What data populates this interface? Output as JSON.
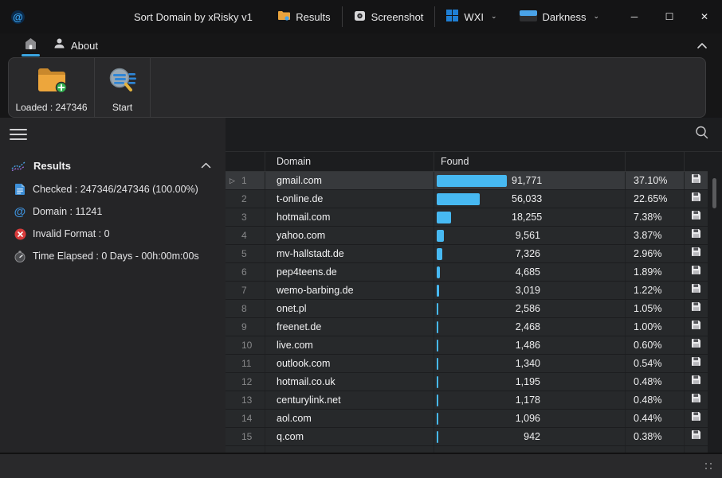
{
  "window": {
    "title": "Sort Domain by xRisky v1",
    "controls": [
      {
        "name": "minimize",
        "glyph": "─"
      },
      {
        "name": "maximize",
        "glyph": "☐"
      },
      {
        "name": "close",
        "glyph": "✕"
      }
    ]
  },
  "titlebar": {
    "results_label": "Results",
    "screenshot_label": "Screenshot",
    "wxi_label": "WXI",
    "darkness_label": "Darkness"
  },
  "tabs": {
    "about_label": "About"
  },
  "ribbon": {
    "loaded_label": "Loaded : 247346",
    "start_label": "Start"
  },
  "sidebar": {
    "section_title": "Results",
    "stats": [
      {
        "icon": "checked-document-icon",
        "label": "Checked : 247346/247346 (100.00%)"
      },
      {
        "icon": "at-icon",
        "label": "Domain : 11241"
      },
      {
        "icon": "invalid-format-icon",
        "label": "Invalid Format : 0"
      },
      {
        "icon": "time-elapsed-icon",
        "label": "Time Elapsed : 0 Days - 00h:00m:00s"
      }
    ]
  },
  "table": {
    "headers": {
      "domain": "Domain",
      "found": "Found"
    },
    "rows": [
      {
        "num": "1",
        "domain": "gmail.com",
        "found": "91,771",
        "percent": "37.10%",
        "selected": true
      },
      {
        "num": "2",
        "domain": "t-online.de",
        "found": "56,033",
        "percent": "22.65%",
        "selected": false
      },
      {
        "num": "3",
        "domain": "hotmail.com",
        "found": "18,255",
        "percent": "7.38%",
        "selected": false
      },
      {
        "num": "4",
        "domain": "yahoo.com",
        "found": "9,561",
        "percent": "3.87%",
        "selected": false
      },
      {
        "num": "5",
        "domain": "mv-hallstadt.de",
        "found": "7,326",
        "percent": "2.96%",
        "selected": false
      },
      {
        "num": "6",
        "domain": "pep4teens.de",
        "found": "4,685",
        "percent": "1.89%",
        "selected": false
      },
      {
        "num": "7",
        "domain": "wemo-barbing.de",
        "found": "3,019",
        "percent": "1.22%",
        "selected": false
      },
      {
        "num": "8",
        "domain": "onet.pl",
        "found": "2,586",
        "percent": "1.05%",
        "selected": false
      },
      {
        "num": "9",
        "domain": "freenet.de",
        "found": "2,468",
        "percent": "1.00%",
        "selected": false
      },
      {
        "num": "10",
        "domain": "live.com",
        "found": "1,486",
        "percent": "0.60%",
        "selected": false
      },
      {
        "num": "11",
        "domain": "outlook.com",
        "found": "1,340",
        "percent": "0.54%",
        "selected": false
      },
      {
        "num": "12",
        "domain": "hotmail.co.uk",
        "found": "1,195",
        "percent": "0.48%",
        "selected": false
      },
      {
        "num": "13",
        "domain": "centurylink.net",
        "found": "1,178",
        "percent": "0.48%",
        "selected": false
      },
      {
        "num": "14",
        "domain": "aol.com",
        "found": "1,096",
        "percent": "0.44%",
        "selected": false
      },
      {
        "num": "15",
        "domain": "q.com",
        "found": "942",
        "percent": "0.38%",
        "selected": false
      }
    ]
  },
  "colors": {
    "accent_blue": "#47b9f2",
    "brand_blue": "#1f7fd4",
    "error_red": "#d83b3b",
    "folder_orange": "#e8a33d",
    "plus_green": "#2fae4e"
  }
}
